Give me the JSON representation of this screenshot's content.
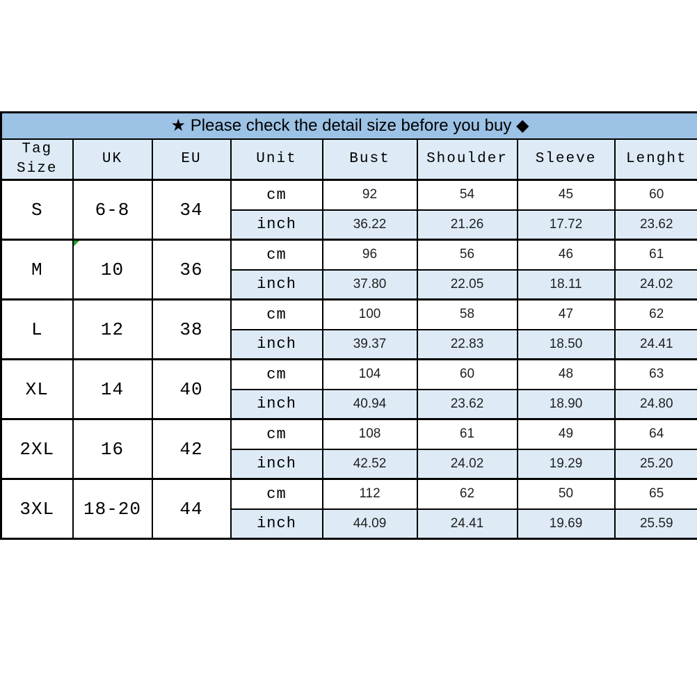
{
  "banner": {
    "text": "★ Please check the detail size before you buy ◆"
  },
  "table": {
    "headers": [
      "Tag Size",
      "UK",
      "EU",
      "Unit",
      "Bust",
      "Shoulder",
      "Sleeve",
      "Lenght"
    ],
    "unit_labels": {
      "cm": "cm",
      "inch": "inch"
    },
    "rows": [
      {
        "tag": "S",
        "uk": "6-8",
        "eu": "34",
        "cm": [
          "92",
          "54",
          "45",
          "60"
        ],
        "inch": [
          "36.22",
          "21.26",
          "17.72",
          "23.62"
        ]
      },
      {
        "tag": "M",
        "uk": "10",
        "eu": "36",
        "cm": [
          "96",
          "56",
          "46",
          "61"
        ],
        "inch": [
          "37.80",
          "22.05",
          "18.11",
          "24.02"
        ]
      },
      {
        "tag": "L",
        "uk": "12",
        "eu": "38",
        "cm": [
          "100",
          "58",
          "47",
          "62"
        ],
        "inch": [
          "39.37",
          "22.83",
          "18.50",
          "24.41"
        ]
      },
      {
        "tag": "XL",
        "uk": "14",
        "eu": "40",
        "cm": [
          "104",
          "60",
          "48",
          "63"
        ],
        "inch": [
          "40.94",
          "23.62",
          "18.90",
          "24.80"
        ]
      },
      {
        "tag": "2XL",
        "uk": "16",
        "eu": "42",
        "cm": [
          "108",
          "61",
          "49",
          "64"
        ],
        "inch": [
          "42.52",
          "24.02",
          "19.29",
          "25.20"
        ]
      },
      {
        "tag": "3XL",
        "uk": "18-20",
        "eu": "44",
        "cm": [
          "112",
          "62",
          "50",
          "65"
        ],
        "inch": [
          "44.09",
          "24.41",
          "19.69",
          "25.59"
        ]
      }
    ],
    "excel_marker": {
      "row_index": 1,
      "column": "uk"
    }
  },
  "colors": {
    "banner_bg": "#9CC2E5",
    "row_alt_bg": "#DEEBF7",
    "border": "#000000",
    "text": "#000000",
    "number_text": "#1F1F1F",
    "marker_green": "#21A121"
  }
}
